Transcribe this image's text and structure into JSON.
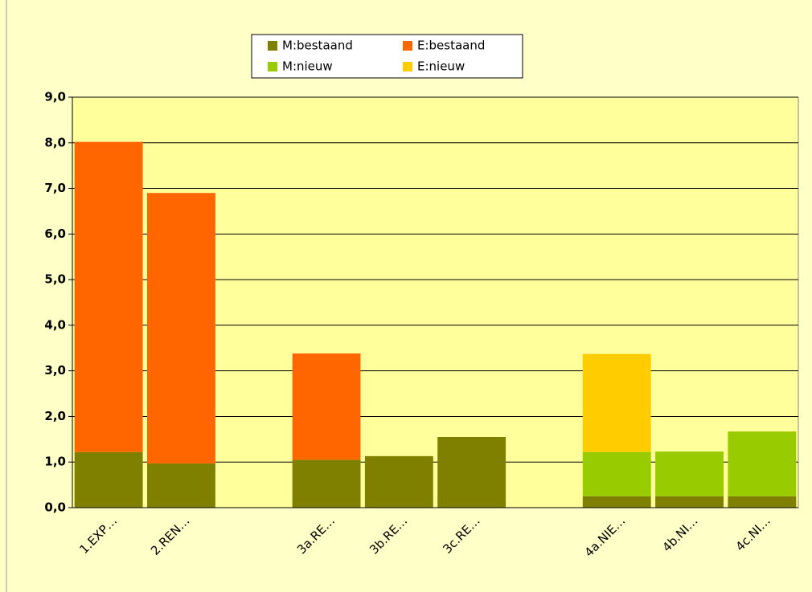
{
  "chart_data": {
    "type": "stacked_bar",
    "categories": [
      "1.EXP…",
      "2.REN…",
      null,
      "3a.RE…",
      "3b.RE…",
      "3c.RE…",
      null,
      "4a.NIE…",
      "4b.NI…",
      "4c.NI…"
    ],
    "series": [
      {
        "name": "M:bestaand",
        "color": "#808000",
        "values": [
          1.22,
          0.97,
          null,
          1.05,
          1.13,
          1.55,
          null,
          0.25,
          0.25,
          0.25
        ]
      },
      {
        "name": "M:nieuw",
        "color": "#99cc00",
        "values": [
          0,
          0,
          null,
          0,
          0,
          0,
          null,
          0.97,
          0.98,
          1.42
        ]
      },
      {
        "name": "E:bestaand",
        "color": "#ff6600",
        "values": [
          6.8,
          5.93,
          null,
          2.33,
          0,
          0,
          null,
          0,
          0,
          0
        ]
      },
      {
        "name": "E:nieuw",
        "color": "#ffcc00",
        "values": [
          0,
          0,
          null,
          0,
          0,
          0,
          null,
          2.15,
          0,
          0
        ]
      }
    ],
    "ylim": [
      0,
      9
    ],
    "yticks": [
      {
        "value": 0,
        "label": "0,0"
      },
      {
        "value": 1,
        "label": "1,0"
      },
      {
        "value": 2,
        "label": "2,0"
      },
      {
        "value": 3,
        "label": "3,0"
      },
      {
        "value": 4,
        "label": "4,0"
      },
      {
        "value": 5,
        "label": "5,0"
      },
      {
        "value": 6,
        "label": "6,0"
      },
      {
        "value": 7,
        "label": "7,0"
      },
      {
        "value": 8,
        "label": "8,0"
      },
      {
        "value": 9,
        "label": "9,0"
      }
    ],
    "grid": true,
    "legend": "top"
  }
}
